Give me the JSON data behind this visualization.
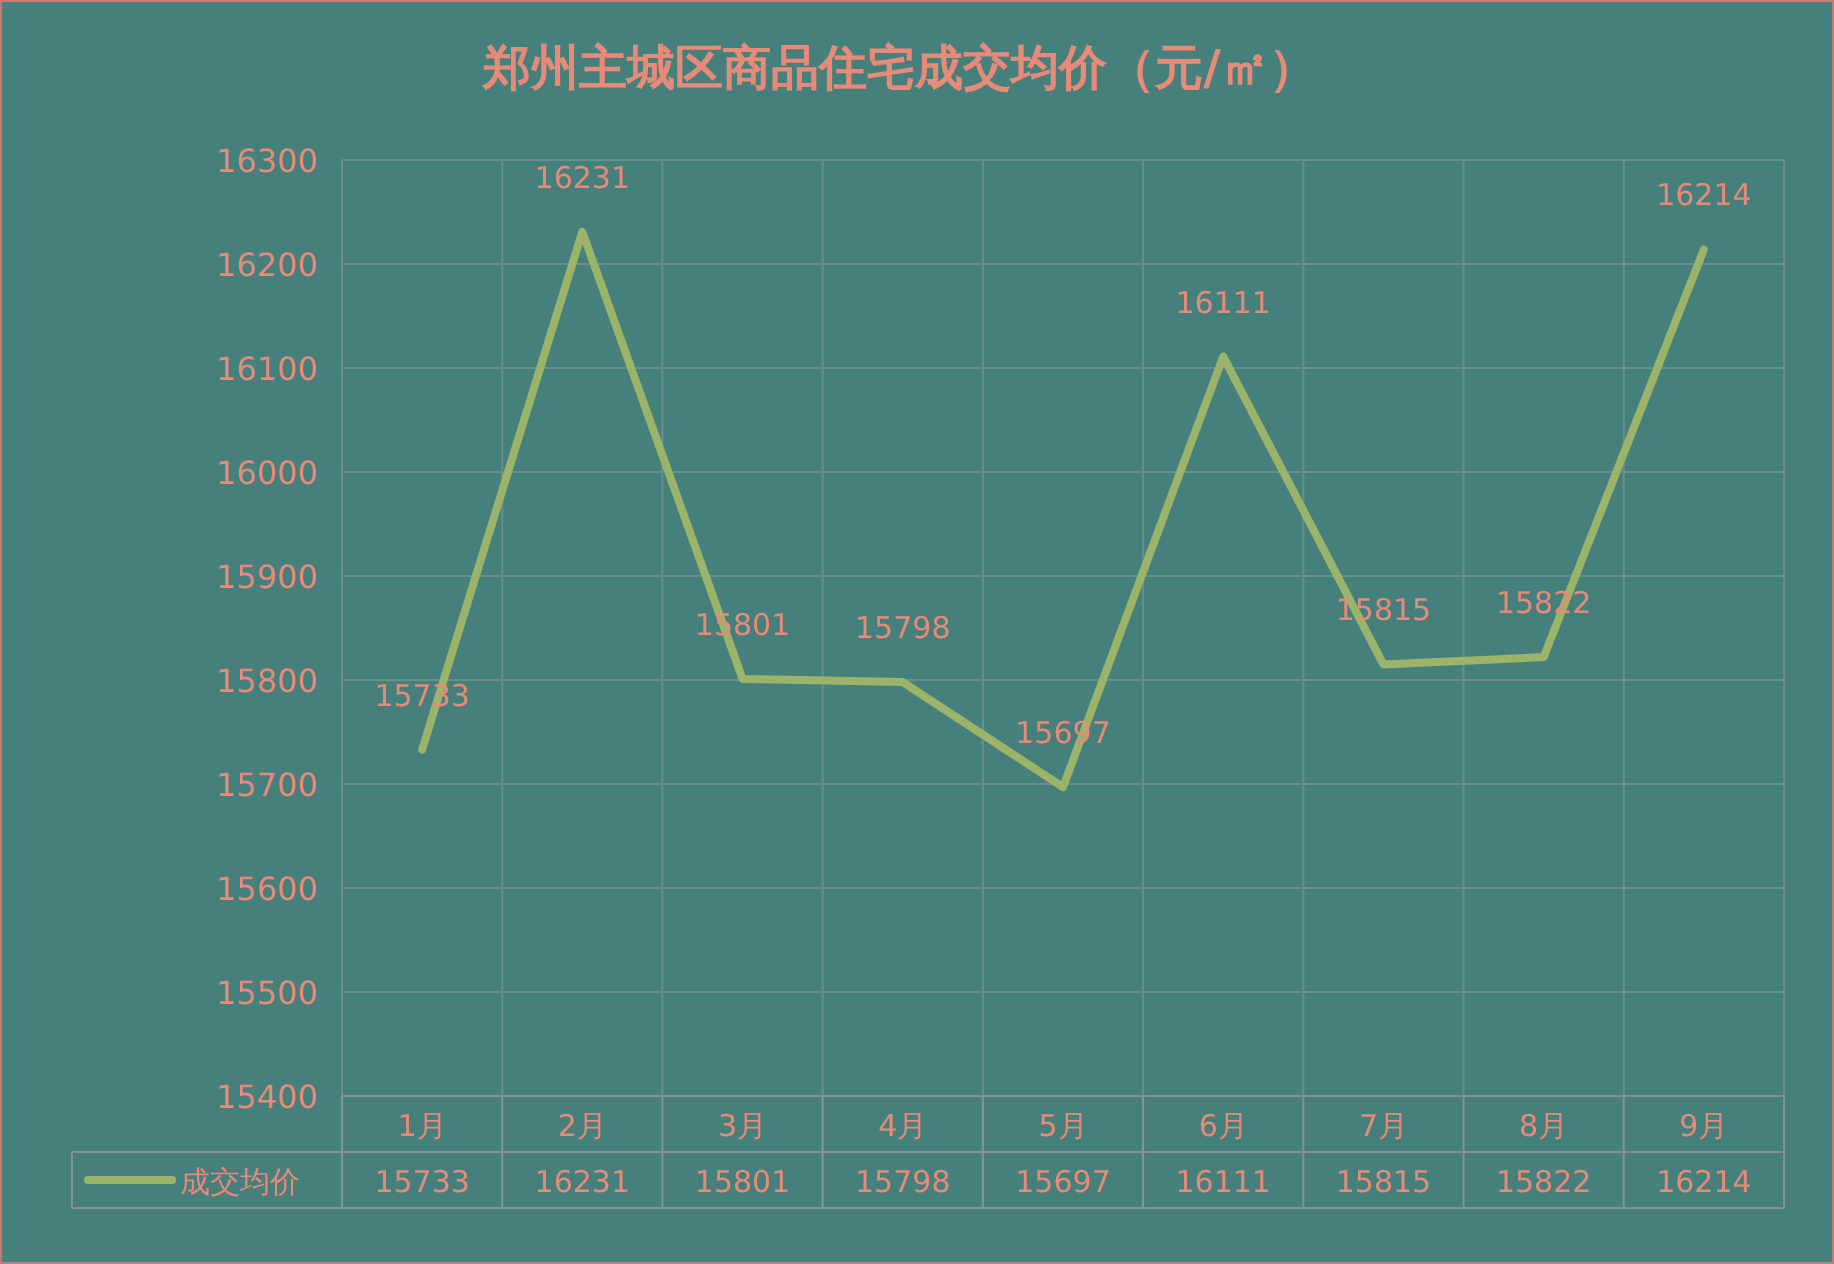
{
  "chart_data": {
    "type": "line",
    "title": "郑州主城区商品住宅成交均价（元/㎡）",
    "categories": [
      "1月",
      "2月",
      "3月",
      "4月",
      "5月",
      "6月",
      "7月",
      "8月",
      "9月"
    ],
    "series": [
      {
        "name": "成交均价",
        "color": "#9cb36a",
        "values": [
          15733,
          16231,
          15801,
          15798,
          15697,
          16111,
          15815,
          15822,
          16214
        ],
        "value_labels": [
          "15733",
          "16231",
          "15801",
          "15798",
          "15697",
          "16111",
          "15815",
          "15822",
          "16214"
        ]
      }
    ],
    "ylim": [
      15400,
      16300
    ],
    "yticks": [
      15400,
      15500,
      15600,
      15700,
      15800,
      15900,
      16000,
      16100,
      16200,
      16300
    ],
    "annotations": [
      "15733",
      "16231",
      "15801",
      "15798",
      "15697",
      "16111",
      "15815",
      "15822",
      "16214"
    ],
    "grid": true,
    "data_labels": true,
    "legend": "bottom",
    "marker": "none",
    "line_style": "solid"
  }
}
